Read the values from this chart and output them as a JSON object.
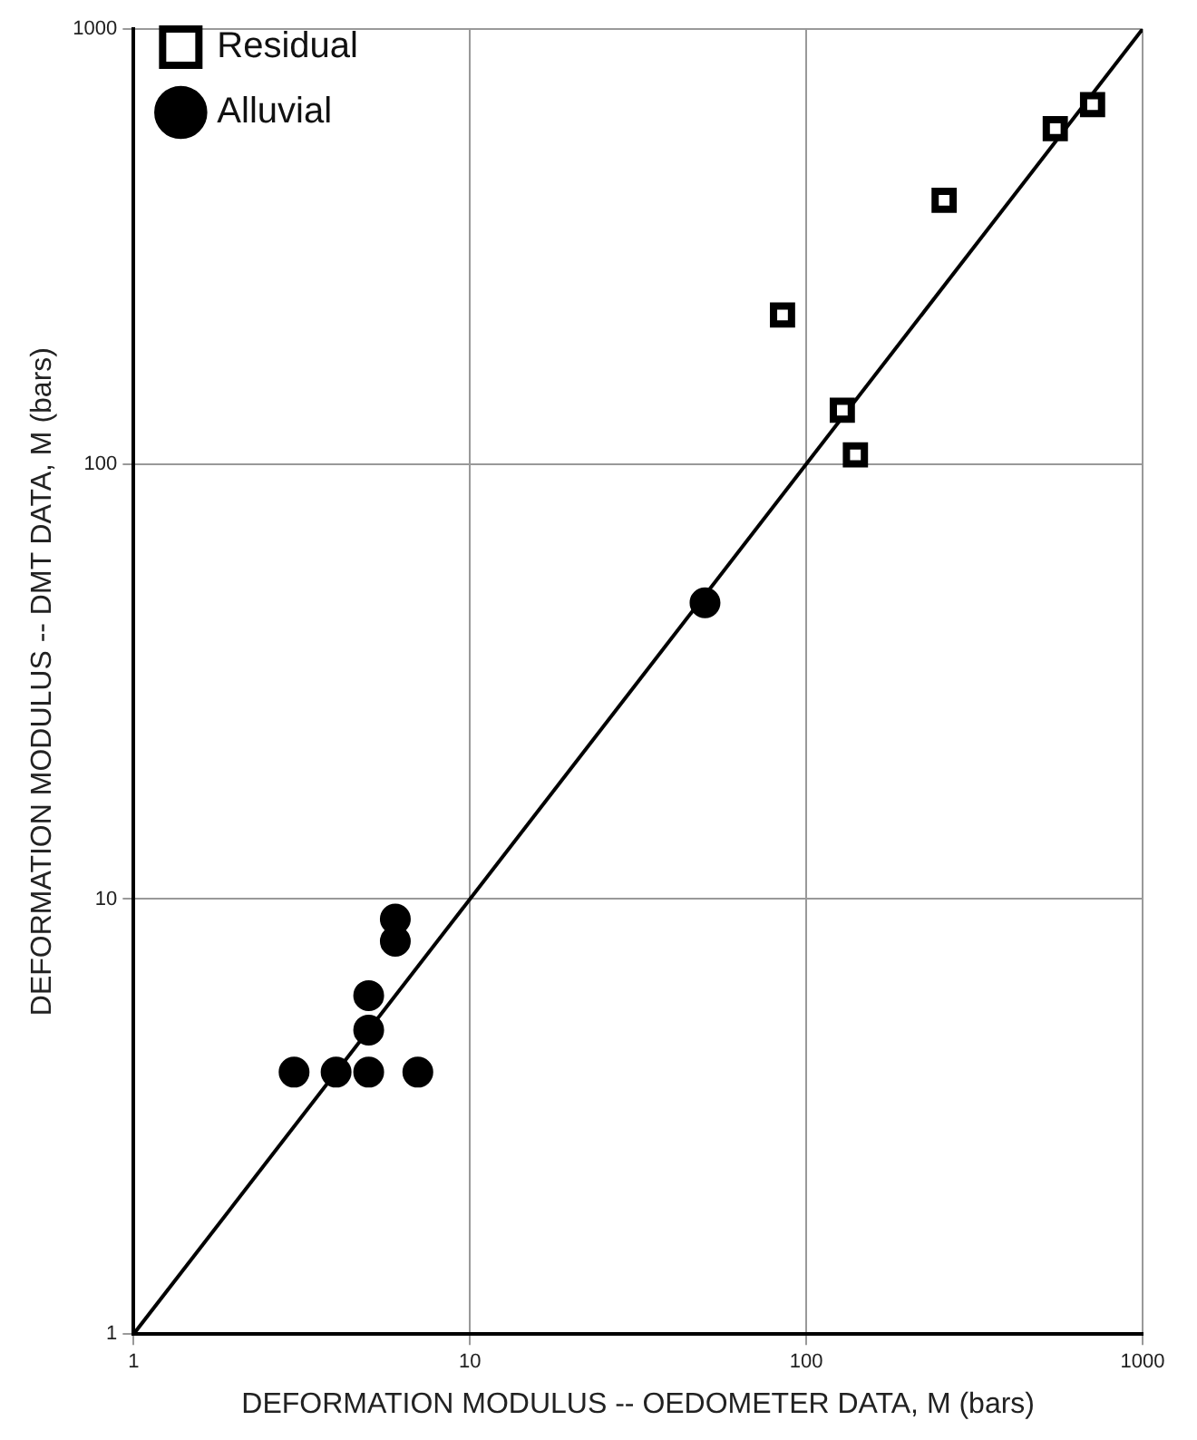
{
  "chart_data": {
    "type": "scatter",
    "xlabel": "DEFORMATION MODULUS -- OEDOMETER DATA, M (bars)",
    "ylabel": "DEFORMATION MODULUS -- DMT DATA, M (bars)",
    "log": "xy",
    "xlim": [
      1,
      1000
    ],
    "ylim": [
      1,
      1000
    ],
    "xticks": [
      1,
      10,
      100,
      1000
    ],
    "yticks": [
      1,
      10,
      100,
      1000
    ],
    "grid": true,
    "legend": "top left",
    "series": [
      {
        "name": "Residual",
        "color": "#000000",
        "marker": "square",
        "x": [
          85,
          128,
          140,
          257,
          550,
          710
        ],
        "values": [
          220,
          133,
          105,
          404,
          590,
          670
        ]
      },
      {
        "name": "Alluvial",
        "color": "#000000",
        "marker": "circle",
        "x": [
          3,
          4,
          5,
          7,
          5,
          5,
          6,
          6,
          50
        ],
        "values": [
          4,
          4,
          4,
          4,
          5,
          6,
          8,
          9,
          48
        ]
      },
      {
        "type": "line",
        "color": "#000000",
        "marker": "none",
        "line_style": "solid",
        "x": [
          1,
          1000
        ],
        "values": [
          1,
          1000
        ]
      }
    ]
  }
}
